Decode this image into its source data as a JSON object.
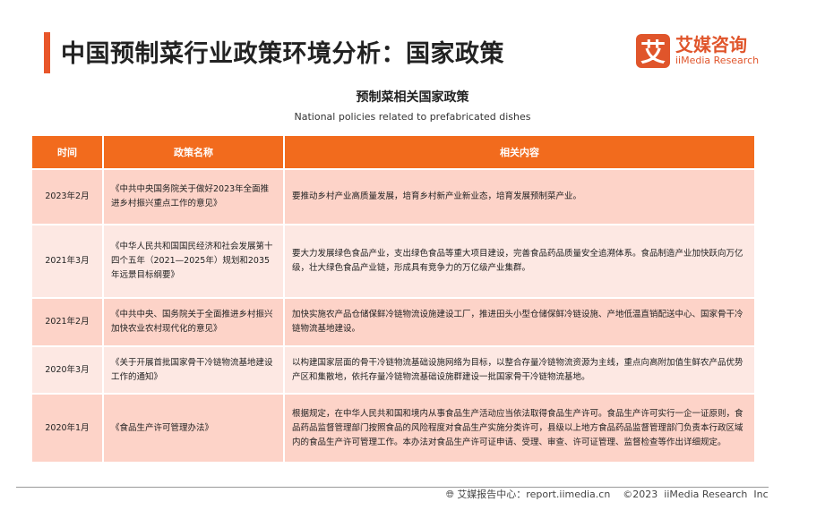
{
  "header": {
    "title": "中国预制菜行业政策环境分析：国家政策"
  },
  "logo": {
    "mark": "艾",
    "cn": "艾媒咨询",
    "en": "iiMedia Research"
  },
  "subtitle": {
    "cn": "预制菜相关国家政策",
    "en": "National policies related to prefabricated dishes"
  },
  "table": {
    "columns": [
      "时间",
      "政策名称",
      "相关内容"
    ],
    "rows": [
      {
        "time": "2023年2月",
        "name": "《中共中央国务院关于做好2023年全面推进乡村振兴重点工作的意见》",
        "content": "要推动乡村产业高质量发展，培育乡村新产业新业态，培育发展预制菜产业。"
      },
      {
        "time": "2021年3月",
        "name": "《中华人民共和国国民经济和社会发展第十四个五年（2021—2025年）规划和2035年远景目标纲要》",
        "content": "要大力发展绿色食品产业，支出绿色食品等重大项目建设，完善食品药品质量安全追溯体系。食品制造产业加快跃向万亿级，壮大绿色食品产业链，形成具有竞争力的万亿级产业集群。"
      },
      {
        "time": "2021年2月",
        "name": "《中共中央、国务院关于全面推进乡村振兴加快农业农村现代化的意见》",
        "content": "加快实施农产品仓储保鲜冷链物流设施建设工厂，推进田头小型仓储保鲜冷链设施、产地低温直销配送中心、国家骨干冷链物流基地建设。"
      },
      {
        "time": "2020年3月",
        "name": "《关于开展首批国家骨干冷链物流基地建设工作的通知》",
        "content": "以构建国家层面的骨干冷链物流基础设施网络为目标，以整合存量冷链物流资源为主线，重点向高附加值生鲜农产品优势产区和集散地，依托存量冷链物流基础设施群建设一批国家骨干冷链物流基地。"
      },
      {
        "time": "2020年1月",
        "name": "《食品生产许可管理办法》",
        "content": "根据规定，在中华人民共和国和境内从事食品生产活动应当依法取得食品生产许可。食品生产许可实行一企一证原则，食品药品监督管理部门按照食品的风险程度对食品生产实施分类许可，县级以上地方食品药品监督管理部门负责本行政区域内的食品生产许可管理工作。本办法对食品生产许可证申请、受理、审查、许可证管理、监督检查等作出详细规定。"
      }
    ]
  },
  "footer": {
    "icon": "globe-icon",
    "text": "艾媒报告中心：report.iimedia.cn    ©2023  iiMedia Research  Inc"
  },
  "colors": {
    "accent": "#f26b1d",
    "row_dark": "#fdd3c8",
    "row_light": "#fde8e3"
  }
}
